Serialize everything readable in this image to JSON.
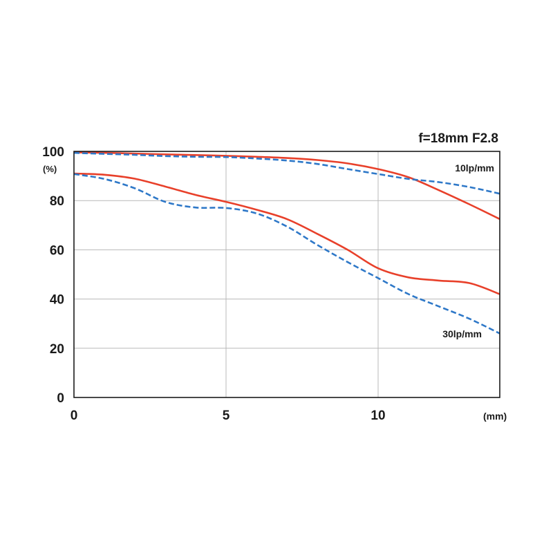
{
  "chart_data": {
    "type": "line",
    "title": "f=18mm F2.8",
    "xlabel": "",
    "ylabel": "",
    "x_unit": "(mm)",
    "y_unit": "(%)",
    "xlim": [
      0,
      14
    ],
    "ylim": [
      0,
      100
    ],
    "x_ticks": [
      "0",
      "5",
      "10"
    ],
    "y_ticks": [
      "0",
      "20",
      "40",
      "60",
      "80",
      "100"
    ],
    "grid": true,
    "annotations": [
      "10lp/mm",
      "30lp/mm"
    ],
    "colors": {
      "sagittal": "#e8402a",
      "meridional": "#2e78c8"
    },
    "series": [
      {
        "group": "10lp/mm",
        "style": "solid",
        "color": "#e8402a",
        "x": [
          0,
          1,
          2,
          3,
          4,
          5,
          6,
          7,
          8,
          9,
          10,
          11,
          12,
          13,
          14
        ],
        "y": [
          99.6,
          99.4,
          99.1,
          98.8,
          98.5,
          98.2,
          97.8,
          97.3,
          96.5,
          95.1,
          92.8,
          89.5,
          84.2,
          78.5,
          72.5
        ]
      },
      {
        "group": "10lp/mm",
        "style": "dashed",
        "color": "#2e78c8",
        "x": [
          0,
          1,
          2,
          3,
          4,
          5,
          6,
          7,
          8,
          9,
          10,
          11,
          12,
          13,
          14
        ],
        "y": [
          99.4,
          99.0,
          98.6,
          98.1,
          97.8,
          97.7,
          97.1,
          96.3,
          94.9,
          92.8,
          90.8,
          88.8,
          87.5,
          85.5,
          82.8
        ]
      },
      {
        "group": "30lp/mm",
        "style": "solid",
        "color": "#e8402a",
        "x": [
          0,
          1,
          2,
          3,
          4,
          5,
          6,
          7,
          8,
          9,
          10,
          11,
          12,
          13,
          14
        ],
        "y": [
          91.0,
          90.5,
          88.9,
          85.7,
          82.3,
          79.5,
          76.3,
          72.5,
          66.5,
          60.0,
          52.5,
          48.8,
          47.5,
          46.5,
          42.0
        ]
      },
      {
        "group": "30lp/mm",
        "style": "dashed",
        "color": "#2e78c8",
        "x": [
          0,
          1,
          2,
          3,
          4,
          5,
          6,
          7,
          8,
          9,
          10,
          11,
          12,
          13,
          14
        ],
        "y": [
          90.8,
          88.8,
          85.0,
          79.5,
          77.2,
          77.0,
          74.8,
          69.5,
          62.0,
          55.0,
          48.5,
          42.0,
          37.0,
          32.0,
          26.0
        ]
      }
    ]
  }
}
